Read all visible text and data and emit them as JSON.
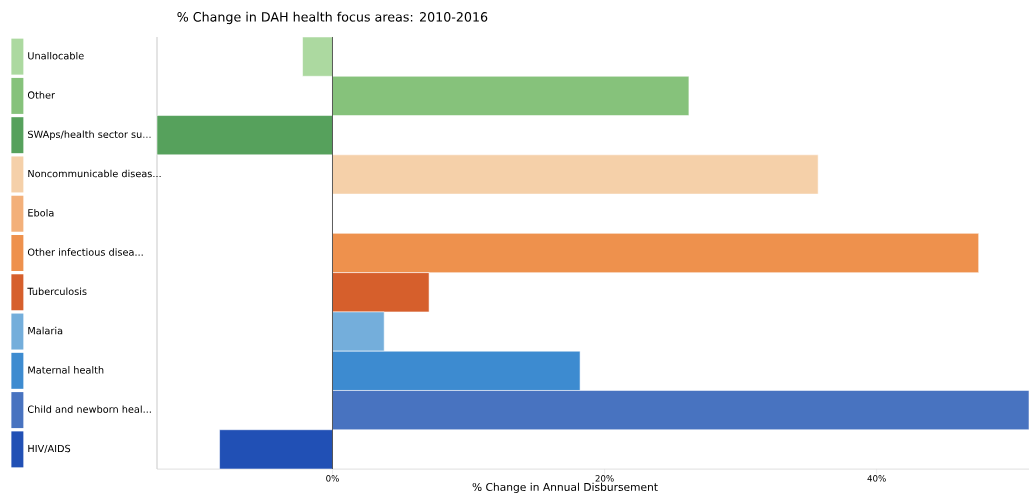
{
  "chart_data": {
    "type": "bar",
    "orientation": "horizontal",
    "title": "% Change in DAH health focus areas: 2010-2016",
    "xlabel": "% Change in Annual Disbursement",
    "categories": [
      "Unallocable",
      "Other",
      "SWAps/health sector su...",
      "Noncommunicable diseas...",
      "Ebola",
      "Other infectious disea...",
      "Tuberculosis",
      "Malaria",
      "Maternal health",
      "Child and newborn heal...",
      "HIV/AIDS"
    ],
    "values": [
      -2.2,
      26.2,
      -12.9,
      35.7,
      0,
      47.5,
      7.1,
      3.8,
      18.2,
      51.2,
      -8.3
    ],
    "colors": [
      "#acd9a0",
      "#86c27b",
      "#56a15c",
      "#f5d0a9",
      "#f3b07a",
      "#ee914d",
      "#d65f2c",
      "#74aedb",
      "#3d8bd0",
      "#4873c0",
      "#2150b5"
    ],
    "xlim": [
      -12.9,
      51.2
    ],
    "xticks": [
      {
        "value": 0,
        "label": "0%"
      },
      {
        "value": 20,
        "label": "20%"
      },
      {
        "value": 40,
        "label": "40%"
      }
    ],
    "ref_lines": [
      {
        "axis": "x",
        "value": 0,
        "color": "#333333"
      }
    ],
    "grid": false
  }
}
